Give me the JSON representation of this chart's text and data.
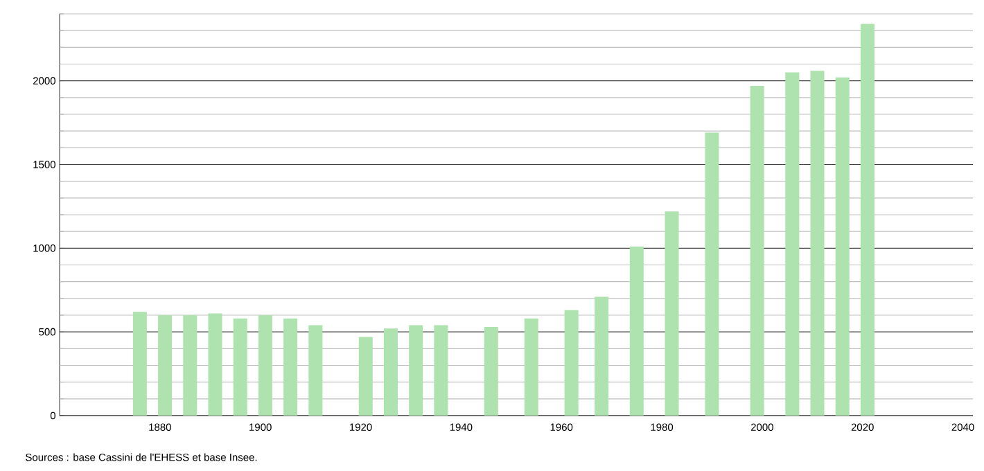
{
  "chart_data": {
    "type": "bar",
    "color": "#aee2ae",
    "x": [
      1876,
      1881,
      1886,
      1891,
      1896,
      1901,
      1906,
      1911,
      1921,
      1926,
      1931,
      1936,
      1946,
      1954,
      1962,
      1968,
      1975,
      1982,
      1990,
      1999,
      2006,
      2011,
      2016,
      2021
    ],
    "values": [
      620,
      600,
      600,
      610,
      580,
      600,
      580,
      540,
      470,
      520,
      540,
      540,
      530,
      580,
      630,
      710,
      1010,
      1220,
      1690,
      1970,
      2050,
      2060,
      2020,
      2340
    ],
    "xlim": [
      1860,
      2042
    ],
    "ylim": [
      0,
      2400
    ],
    "xticks": [
      1880,
      1900,
      1920,
      1940,
      1960,
      1980,
      2000,
      2020,
      2040
    ],
    "yticks": [
      0,
      {
        "value": 100,
        "label": null
      },
      {
        "value": 200,
        "label": null
      },
      {
        "value": 300,
        "label": null
      },
      {
        "value": 400,
        "label": null
      },
      500,
      {
        "value": 600,
        "label": null
      },
      {
        "value": 700,
        "label": null
      },
      {
        "value": 800,
        "label": null
      },
      {
        "value": 900,
        "label": null
      },
      1000,
      {
        "value": 1100,
        "label": null
      },
      {
        "value": 1200,
        "label": null
      },
      {
        "value": 1300,
        "label": null
      },
      {
        "value": 1400,
        "label": null
      },
      1500,
      {
        "value": 1600,
        "label": null
      },
      {
        "value": 1700,
        "label": null
      },
      {
        "value": 1800,
        "label": null
      },
      {
        "value": 1900,
        "label": null
      },
      2000,
      {
        "value": 2100,
        "label": null
      },
      {
        "value": 2200,
        "label": null
      },
      {
        "value": 2300,
        "label": null
      },
      {
        "value": 2400,
        "label": null
      }
    ],
    "grid": "y",
    "annotations": [
      "Sources : base Cassini de l'EHESS et base Insee."
    ]
  }
}
